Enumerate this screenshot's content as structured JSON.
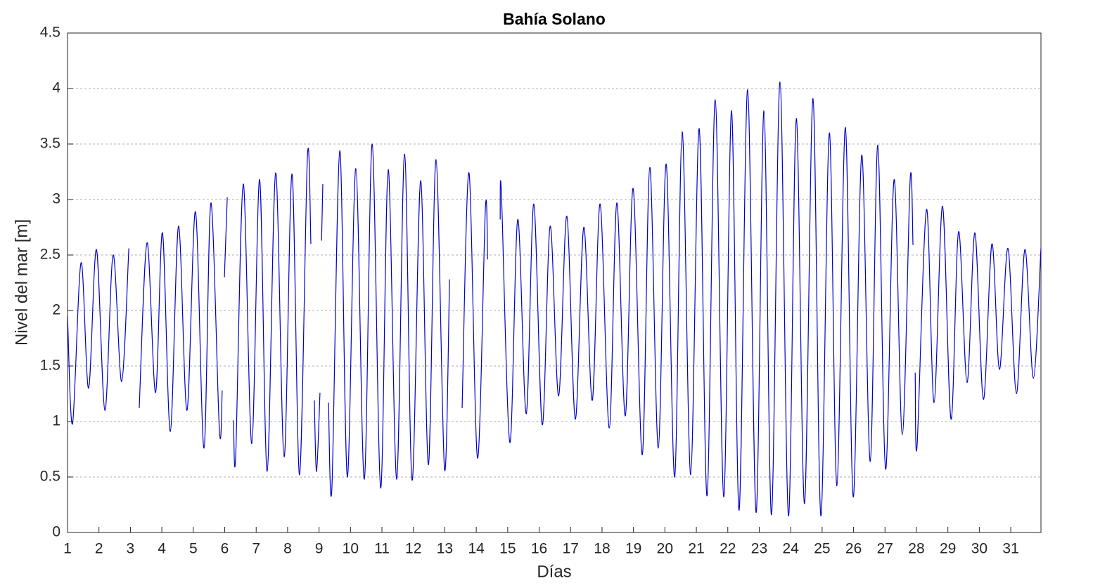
{
  "chart_data": {
    "type": "line",
    "title": "Bahía Solano",
    "xlabel": "Días",
    "ylabel": "Nivel del mar [m]",
    "xlim": [
      1,
      31.96
    ],
    "xticks": [
      1,
      2,
      3,
      4,
      5,
      6,
      7,
      8,
      9,
      10,
      11,
      12,
      13,
      14,
      15,
      16,
      17,
      18,
      19,
      20,
      21,
      22,
      23,
      24,
      25,
      26,
      27,
      28,
      29,
      30,
      31
    ],
    "ylim": [
      0,
      4.5
    ],
    "yticks": [
      0,
      0.5,
      1,
      1.5,
      2,
      2.5,
      3,
      3.5,
      4,
      4.5
    ],
    "grid": true,
    "x": [
      1.0,
      1.16,
      1.43,
      1.67,
      1.92,
      2.19,
      2.45,
      2.72,
      2.95,
      null,
      3.28,
      3.53,
      3.8,
      4.02,
      4.27,
      4.53,
      4.8,
      5.07,
      5.34,
      5.56,
      5.83,
      5.92,
      null,
      5.99,
      6.08,
      null,
      6.28,
      6.35,
      6.59,
      6.86,
      7.11,
      7.35,
      7.62,
      7.89,
      8.14,
      8.38,
      8.63,
      8.74,
      null,
      8.85,
      8.92,
      9.03,
      null,
      9.08,
      9.12,
      null,
      9.3,
      9.41,
      9.66,
      9.9,
      10.17,
      10.44,
      10.69,
      10.96,
      11.2,
      11.47,
      11.72,
      11.96,
      12.23,
      12.48,
      12.72,
      12.99,
      13.15,
      null,
      13.55,
      13.77,
      14.04,
      14.29,
      14.36,
      null,
      14.76,
      14.8,
      15.07,
      15.32,
      15.59,
      15.83,
      16.1,
      16.35,
      16.62,
      16.88,
      17.15,
      17.42,
      17.69,
      17.94,
      18.23,
      18.47,
      18.74,
      18.99,
      19.28,
      19.52,
      19.79,
      20.04,
      20.31,
      20.55,
      20.82,
      21.09,
      21.34,
      21.6,
      21.87,
      22.12,
      22.36,
      22.63,
      22.9,
      23.15,
      23.39,
      23.66,
      23.93,
      24.18,
      24.44,
      24.71,
      24.96,
      25.23,
      25.47,
      25.74,
      25.99,
      26.26,
      26.53,
      26.77,
      27.02,
      27.29,
      27.55,
      27.8,
      27.89,
      null,
      27.96,
      28.02,
      28.32,
      28.56,
      28.83,
      29.1,
      29.34,
      29.61,
      29.86,
      30.13,
      30.4,
      30.64,
      30.91,
      31.18,
      31.45,
      31.72,
      31.96
    ],
    "series": [
      {
        "color": "#0000cd",
        "values": [
          1.95,
          0.98,
          2.43,
          1.3,
          2.55,
          1.1,
          2.5,
          1.36,
          2.56,
          null,
          1.12,
          2.61,
          1.26,
          2.7,
          0.91,
          2.76,
          1.1,
          2.89,
          0.76,
          2.97,
          0.92,
          1.28,
          null,
          2.3,
          3.02,
          null,
          1.01,
          0.7,
          3.14,
          0.8,
          3.18,
          0.55,
          3.24,
          0.68,
          3.23,
          0.52,
          3.39,
          2.6,
          null,
          1.19,
          0.55,
          1.26,
          null,
          2.63,
          3.14,
          null,
          1.17,
          0.41,
          3.44,
          0.5,
          3.28,
          0.48,
          3.5,
          0.4,
          3.27,
          0.48,
          3.41,
          0.47,
          3.17,
          0.61,
          3.36,
          0.57,
          2.28,
          null,
          1.12,
          3.24,
          0.67,
          2.92,
          2.46,
          null,
          2.82,
          3.06,
          0.81,
          2.82,
          1.07,
          2.96,
          0.97,
          2.76,
          1.23,
          2.85,
          1.02,
          2.75,
          1.19,
          2.96,
          0.94,
          2.97,
          1.05,
          3.1,
          0.7,
          3.29,
          0.76,
          3.32,
          0.5,
          3.61,
          0.52,
          3.64,
          0.33,
          3.9,
          0.32,
          3.8,
          0.2,
          3.99,
          0.18,
          3.8,
          0.16,
          4.06,
          0.15,
          3.73,
          0.26,
          3.91,
          0.15,
          3.6,
          0.42,
          3.65,
          0.32,
          3.4,
          0.64,
          3.49,
          0.57,
          3.18,
          0.88,
          3.18,
          2.59,
          null,
          1.44,
          0.78,
          2.91,
          1.17,
          2.94,
          1.02,
          2.71,
          1.35,
          2.7,
          1.2,
          2.6,
          1.47,
          2.56,
          1.25,
          2.55,
          1.39,
          2.56
        ]
      }
    ]
  }
}
